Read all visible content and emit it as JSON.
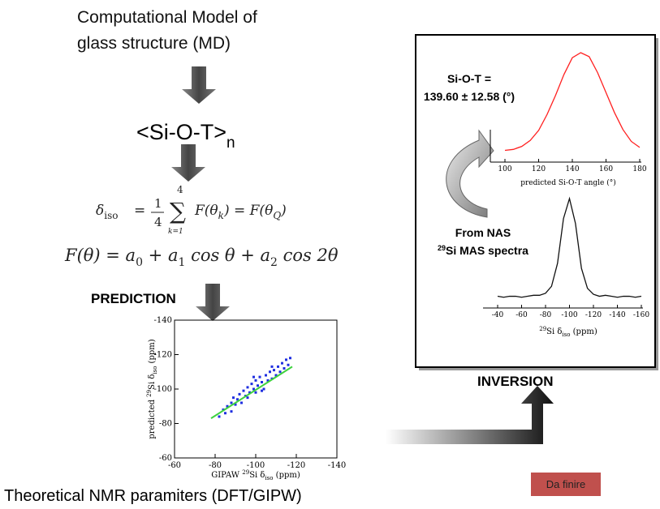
{
  "header": {
    "lines": [
      "Computational Model of",
      "glass structure (MD)"
    ]
  },
  "average": {
    "text": "<Si-O-T>",
    "sub": "n"
  },
  "formula_1": {
    "lhs": "δ",
    "lhs_sub": "iso",
    "eq": "=",
    "frac_num": "1",
    "frac_den": "4",
    "sum": "∑",
    "sum_top": "4",
    "sum_bottom": "k=1",
    "rhs_a": "F(θ",
    "rhs_a_sub": "k",
    "rhs_b": ") = F(θ",
    "rhs_b_sub": "Q",
    "rhs_c": ")"
  },
  "formula_2": {
    "parts": [
      "F(θ) = a",
      "0",
      " + a",
      "1",
      " cos θ + a",
      "2",
      " cos 2θ"
    ]
  },
  "prediction": "PREDICTION",
  "scatter_plot": {
    "xlim": [
      -60,
      -140
    ],
    "ylim": [
      -60,
      -140
    ],
    "xticks": [
      -60,
      -80,
      -100,
      -120,
      -140
    ],
    "yticks": [
      -140,
      -120,
      -100,
      -80,
      -60
    ],
    "xlabel": [
      "GIPAW ",
      "29",
      "Si δ",
      "iso",
      " (ppm)"
    ],
    "ylabel": [
      "predicted ",
      "29",
      "Si δ",
      "iso",
      " (ppm)"
    ],
    "color": "#1f2fe0",
    "fit_color": "#3fd23f",
    "x": [
      -82,
      -84,
      -85,
      -86,
      -88,
      -88,
      -89,
      -90,
      -91,
      -92,
      -93,
      -94,
      -95,
      -96,
      -97,
      -98,
      -99,
      -100,
      -100,
      -101,
      -102,
      -103,
      -104,
      -105,
      -106,
      -107,
      -108,
      -109,
      -110,
      -111,
      -112,
      -113,
      -114,
      -115,
      -116,
      -117,
      -96,
      -99,
      -103,
      -108
    ],
    "y": [
      -84,
      -88,
      -86,
      -90,
      -92,
      -87,
      -95,
      -91,
      -94,
      -97,
      -92,
      -99,
      -96,
      -101,
      -98,
      -103,
      -100,
      -105,
      -98,
      -102,
      -107,
      -104,
      -100,
      -108,
      -105,
      -110,
      -106,
      -111,
      -108,
      -113,
      -110,
      -115,
      -112,
      -117,
      -114,
      -118,
      -95,
      -107,
      -99,
      -113
    ],
    "fit": {
      "x": [
        -78,
        -118
      ],
      "y": [
        -83,
        -113
      ]
    }
  },
  "footer": "Theoretical NMR paramiters  (DFT/GIPW)",
  "inversion": "INVERSION",
  "status_button": "Da finire",
  "inset": {
    "result_lines": [
      "Si-O-T =",
      "139.60 ± 12.58 (°)"
    ],
    "source_lines": [
      "From NAS"
    ],
    "source_sup": "29",
    "source_rest": "Si MAS spectra",
    "angle_plot": {
      "xlim": [
        100,
        180
      ],
      "ylim": [
        0,
        1
      ],
      "xticks": [
        100,
        120,
        140,
        160,
        180
      ],
      "xlabel": "predicted Si-O-T angle (°)",
      "color": "#ff2020",
      "x": [
        100,
        105,
        110,
        115,
        120,
        125,
        130,
        135,
        140,
        145,
        150,
        155,
        160,
        165,
        170,
        175,
        180
      ],
      "values": [
        0.02,
        0.03,
        0.06,
        0.12,
        0.22,
        0.38,
        0.57,
        0.78,
        0.95,
        1.0,
        0.96,
        0.8,
        0.6,
        0.4,
        0.23,
        0.11,
        0.05
      ]
    },
    "spectrum_plot": {
      "xlim": [
        -40,
        -160
      ],
      "ylim": [
        0,
        1
      ],
      "xticks": [
        -40,
        -60,
        -80,
        -100,
        -120,
        -140,
        -160
      ],
      "xlabel": [
        "29",
        "Si δ",
        "iso",
        " (ppm)"
      ],
      "color": "#111111",
      "x": [
        -40,
        -45,
        -50,
        -55,
        -60,
        -65,
        -70,
        -75,
        -80,
        -85,
        -90,
        -95,
        -100,
        -105,
        -110,
        -115,
        -120,
        -125,
        -130,
        -135,
        -140,
        -145,
        -150,
        -155,
        -160
      ],
      "values": [
        0.02,
        0.01,
        0.02,
        0.02,
        0.01,
        0.02,
        0.03,
        0.03,
        0.05,
        0.12,
        0.35,
        0.8,
        1.0,
        0.75,
        0.3,
        0.1,
        0.04,
        0.02,
        0.03,
        0.02,
        0.01,
        0.02,
        0.02,
        0.01,
        0.02
      ]
    }
  }
}
